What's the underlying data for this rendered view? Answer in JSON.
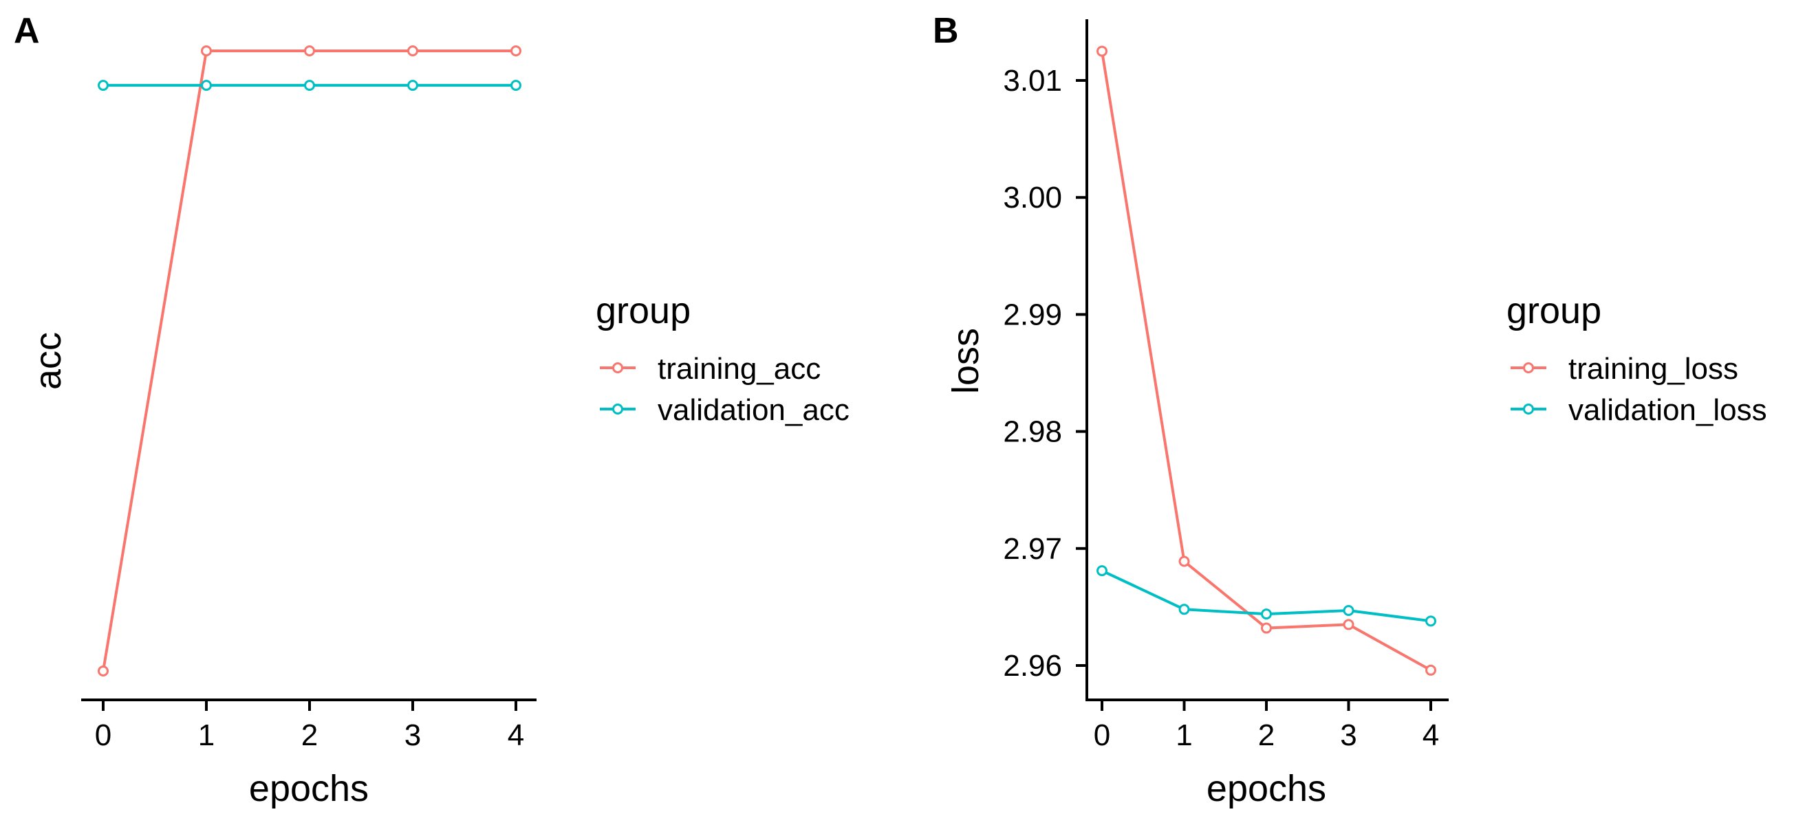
{
  "chart_data": [
    {
      "type": "line",
      "panel_label": "A",
      "x": [
        0,
        1,
        2,
        3,
        4
      ],
      "xlabel": "epochs",
      "ylabel": "acc",
      "xlim": [
        -0.2,
        4.2
      ],
      "ylim": [
        0.026,
        0.049
      ],
      "y_ticks_shown": false,
      "grid": false,
      "legend_title": "group",
      "legend_position": "right",
      "series": [
        {
          "name": "training_acc",
          "color": "#F8766D",
          "values": [
            0.0285,
            0.0465,
            0.0465,
            0.0465,
            0.0465
          ]
        },
        {
          "name": "validation_acc",
          "color": "#00BFC4",
          "values": [
            0.0455,
            0.0455,
            0.0455,
            0.0455,
            0.0455
          ]
        }
      ]
    },
    {
      "type": "line",
      "panel_label": "B",
      "x": [
        0,
        1,
        2,
        3,
        4
      ],
      "xlabel": "epochs",
      "ylabel": "loss",
      "xlim": [
        -0.2,
        4.2
      ],
      "ylim": [
        2.957,
        3.015
      ],
      "y_ticks": [
        2.96,
        2.97,
        2.98,
        2.99,
        3.0,
        3.01
      ],
      "y_tick_labels": [
        "2.96",
        "2.97",
        "2.98",
        "2.99",
        "3.00",
        "3.01"
      ],
      "grid": false,
      "legend_title": "group",
      "legend_position": "right",
      "series": [
        {
          "name": "training_loss",
          "color": "#F8766D",
          "values": [
            3.0125,
            2.9689,
            2.9632,
            2.9635,
            2.9596
          ]
        },
        {
          "name": "validation_loss",
          "color": "#00BFC4",
          "values": [
            2.9681,
            2.9648,
            2.9644,
            2.9647,
            2.9638
          ]
        }
      ]
    }
  ]
}
